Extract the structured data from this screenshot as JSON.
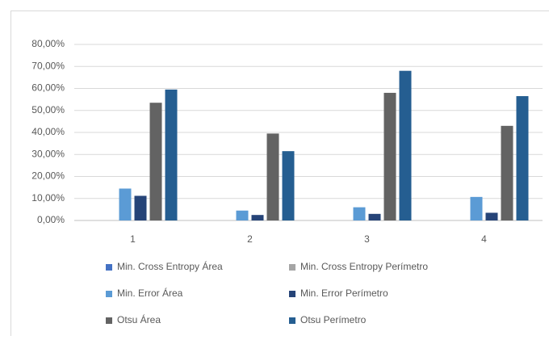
{
  "chart_data": {
    "type": "bar",
    "categories": [
      "1",
      "2",
      "3",
      "4"
    ],
    "series": [
      {
        "name": "Min. Cross Entropy Área",
        "color": "#4472c4",
        "values": [
          0,
          0,
          0,
          0
        ]
      },
      {
        "name": "Min. Cross Entropy Perímetro",
        "color": "#a5a5a5",
        "values": [
          0,
          0,
          0,
          0
        ]
      },
      {
        "name": "Min. Error Área",
        "color": "#5b9bd5",
        "values": [
          14.5,
          4.5,
          6,
          10.7
        ]
      },
      {
        "name": "Min. Error Perímetro",
        "color": "#264478",
        "values": [
          11.2,
          2.5,
          3,
          3.5
        ]
      },
      {
        "name": "Otsu Área",
        "color": "#636363",
        "values": [
          53.5,
          39.5,
          58,
          43
        ]
      },
      {
        "name": "Otsu Perímetro",
        "color": "#255e91",
        "values": [
          59.5,
          31.5,
          68,
          56.5
        ]
      }
    ],
    "ylim": [
      0,
      80
    ],
    "yticks": [
      {
        "value": 0,
        "label": "0,00%"
      },
      {
        "value": 10,
        "label": "10,00%"
      },
      {
        "value": 20,
        "label": "20,00%"
      },
      {
        "value": 30,
        "label": "30,00%"
      },
      {
        "value": 40,
        "label": "40,00%"
      },
      {
        "value": 50,
        "label": "50,00%"
      },
      {
        "value": 60,
        "label": "60,00%"
      },
      {
        "value": 70,
        "label": "70,00%"
      },
      {
        "value": 80,
        "label": "80,00%"
      }
    ],
    "legend": "bottom"
  }
}
